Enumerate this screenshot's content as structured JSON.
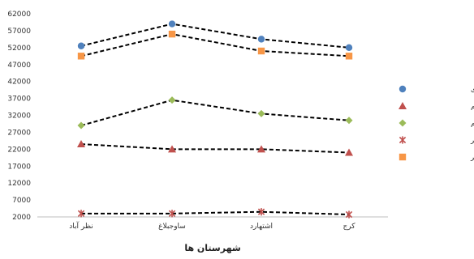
{
  "chart_data": {
    "type": "line",
    "xlabel": "شهرستان ها",
    "ylabel": "",
    "ylim": [
      2000,
      62000
    ],
    "yticks": [
      2000,
      7000,
      12000,
      17000,
      22000,
      27000,
      32000,
      37000,
      42000,
      47000,
      52000,
      57000,
      62000
    ],
    "ytick_labels": [
      "2000",
      "7000",
      "12000",
      "17000",
      "22000",
      "27000",
      "32000",
      "37000",
      "42000",
      "47000",
      "52000",
      "57000",
      "62000"
    ],
    "categories": [
      "نظر آباد",
      "ساوجبلاغ",
      "اشتهارد",
      "کرج"
    ],
    "grid": false,
    "legend_position": "right",
    "series": [
      {
        "name": "کل انرژی ورودی",
        "values": [
          52500,
          59000,
          54500,
          52000
        ],
        "color": "#4f81bd",
        "marker": "circle",
        "line": "dashed"
      },
      {
        "name": "انرژی های مستقیم",
        "values": [
          23500,
          22000,
          22000,
          21000
        ],
        "color": "#c0504d",
        "marker": "triangle",
        "line": "dashed"
      },
      {
        "name": "انرژی های غیرمستقیم",
        "values": [
          29000,
          36500,
          32500,
          30500
        ],
        "color": "#9bbb59",
        "marker": "diamond",
        "line": "dashed"
      },
      {
        "name": "انرژی تجدیدپذیر",
        "values": [
          3000,
          3000,
          3500,
          2700
        ],
        "color": "#c0504d",
        "marker": "star",
        "line": "dashed"
      },
      {
        "name": "انرژی غیرتجدیدپذیر",
        "values": [
          49500,
          56000,
          51000,
          49500
        ],
        "color": "#f79646",
        "marker": "square",
        "line": "dashed"
      }
    ]
  }
}
